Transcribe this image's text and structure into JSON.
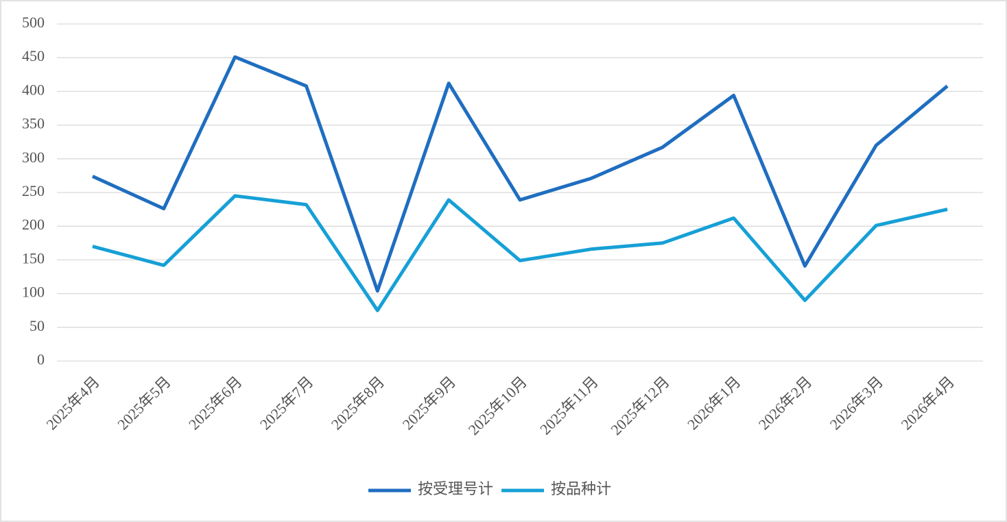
{
  "chart_data": {
    "type": "line",
    "categories": [
      "2025年4月",
      "2025年5月",
      "2025年6月",
      "2025年7月",
      "2025年8月",
      "2025年9月",
      "2025年10月",
      "2025年11月",
      "2025年12月",
      "2026年1月",
      "2026年2月",
      "2026年3月",
      "2026年4月"
    ],
    "series": [
      {
        "name": "按受理号计",
        "color": "#1f6ec0",
        "values": [
          274,
          226,
          451,
          408,
          104,
          412,
          239,
          271,
          317,
          394,
          141,
          320,
          408
        ]
      },
      {
        "name": "按品种计",
        "color": "#16a0d6",
        "values": [
          170,
          142,
          245,
          232,
          75,
          239,
          149,
          166,
          175,
          212,
          90,
          201,
          225
        ]
      }
    ],
    "ylim": [
      0,
      500
    ],
    "yticks": [
      0,
      50,
      100,
      150,
      200,
      250,
      300,
      350,
      400,
      450,
      500
    ],
    "grid": true,
    "legend": "bottom"
  }
}
